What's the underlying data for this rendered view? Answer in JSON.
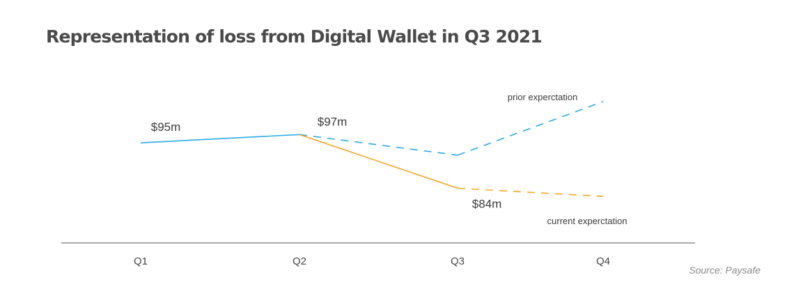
{
  "chart_data": {
    "type": "line",
    "title": "Representation of loss from Digital Wallet in Q3 2021",
    "categories": [
      "Q1",
      "Q2",
      "Q3",
      "Q4"
    ],
    "series": [
      {
        "name": "prior experctation",
        "values": [
          95,
          97,
          92,
          105
        ],
        "color": "#29abe2",
        "solid_until_index": 1
      },
      {
        "name": "current experctation",
        "values": [
          null,
          97,
          84,
          82
        ],
        "color": "#f5a623",
        "solid_until_index": 2
      }
    ],
    "data_labels": [
      {
        "category": "Q1",
        "value": 95,
        "text": "$95m"
      },
      {
        "category": "Q2",
        "value": 97,
        "text": "$97m"
      },
      {
        "category": "Q3",
        "value": 84,
        "text": "$84m"
      }
    ],
    "ylim": [
      79,
      106
    ],
    "grid": false,
    "xlabel": "",
    "ylabel": ""
  },
  "source": "Source: Paysafe"
}
